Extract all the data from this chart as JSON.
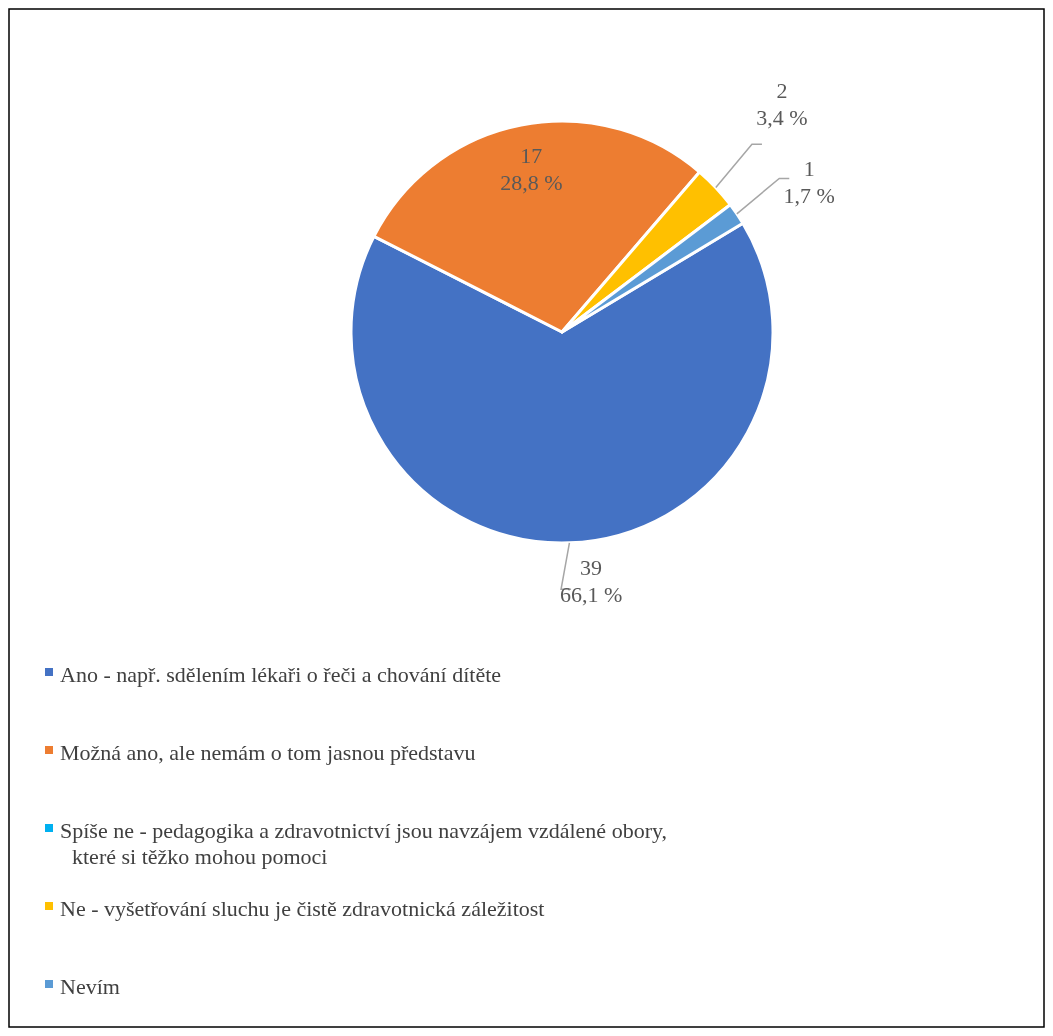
{
  "chart_data": {
    "type": "pie",
    "categories": [
      "Ano - např. sdělením lékaři o řeči a chování dítěte",
      "Možná ano, ale nemám o tom jasnou představu",
      "Spíše ne - pedagogika a zdravotnictví jsou navzájem vzdálené obory, které si těžko mohou pomoci",
      "Ne - vyšetřování sluchu je čistě zdravotnická záležitost",
      "Nevím"
    ],
    "values": [
      39,
      17,
      0,
      2,
      1
    ],
    "colors": [
      "#4472c4",
      "#ed7d31",
      "#00b0f0",
      "#ffc000",
      "#5b9bd5"
    ],
    "value_labels": [
      "39\n66,1 %",
      "17\n28,8 %",
      null,
      "2\n3,4 %",
      "1\n1,7 %"
    ],
    "legend": "bottom"
  }
}
